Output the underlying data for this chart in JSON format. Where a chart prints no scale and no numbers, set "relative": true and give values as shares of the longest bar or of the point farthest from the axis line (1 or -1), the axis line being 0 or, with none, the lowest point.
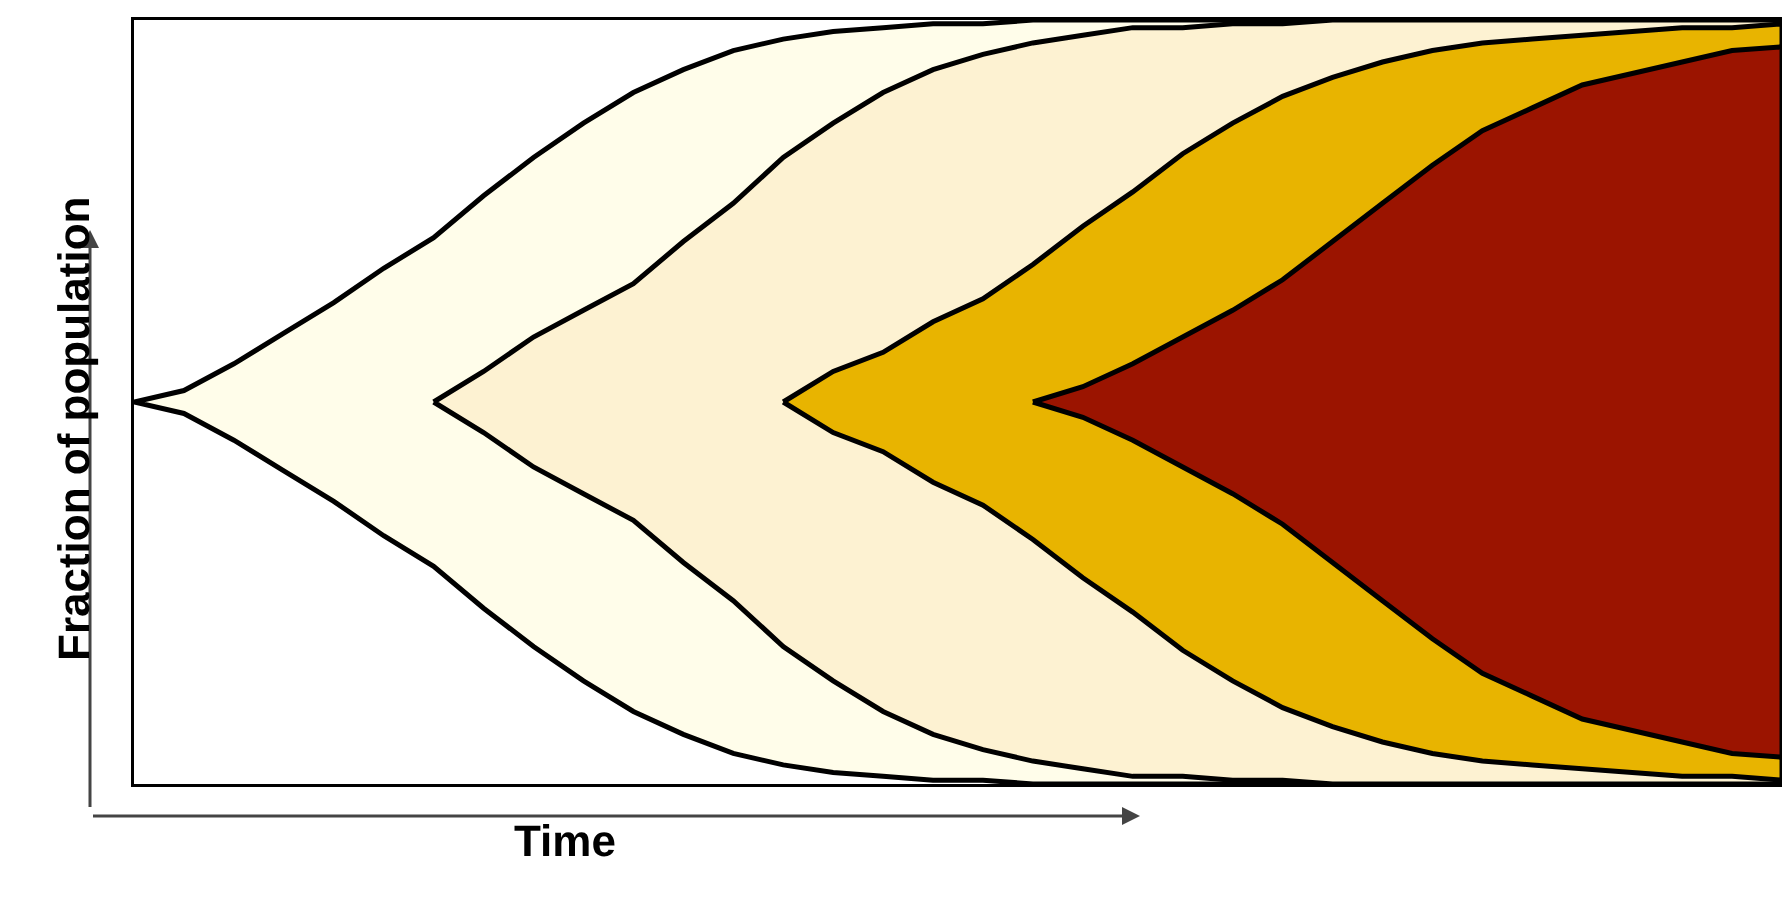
{
  "chart_data": {
    "type": "area",
    "relative": true,
    "ylabel": "Fraction of population",
    "annotations": [
      "Time"
    ],
    "categories": [
      null,
      null,
      null,
      null,
      null,
      null,
      null,
      null,
      null,
      null,
      null,
      null,
      null,
      null,
      null,
      null,
      null,
      null,
      null,
      null,
      null,
      null,
      null,
      null,
      null,
      null,
      null,
      null,
      null,
      null,
      null,
      null,
      null,
      null
    ],
    "series": [
      {
        "color": "#fffdea",
        "values": [
          0.5,
          0.515,
          0.55,
          0.59,
          0.63,
          0.675,
          0.715,
          0.77,
          0.82,
          0.865,
          0.905,
          0.935,
          0.96,
          0.975,
          0.985,
          0.99,
          0.995,
          0.995,
          1,
          1,
          1,
          1,
          1,
          1,
          1,
          1,
          1,
          1,
          1,
          1,
          1,
          1,
          1,
          1
        ]
      },
      {
        "color": "#fdf2d2",
        "values": [
          null,
          null,
          null,
          null,
          null,
          null,
          0.5,
          0.54,
          0.585,
          0.62,
          0.655,
          0.71,
          0.76,
          0.82,
          0.865,
          0.905,
          0.935,
          0.955,
          0.97,
          0.98,
          0.99,
          0.99,
          0.995,
          0.995,
          1,
          1,
          1,
          1,
          1,
          1,
          1,
          1,
          1,
          1
        ]
      },
      {
        "color": "#e8b400",
        "values": [
          null,
          null,
          null,
          null,
          null,
          null,
          null,
          null,
          null,
          null,
          null,
          null,
          null,
          0.5,
          0.54,
          0.565,
          0.605,
          0.635,
          0.68,
          0.73,
          0.775,
          0.825,
          0.865,
          0.9,
          0.925,
          0.945,
          0.96,
          0.97,
          0.975,
          0.98,
          0.985,
          0.99,
          0.99,
          0.995
        ]
      },
      {
        "color": "#9b1400",
        "values": [
          null,
          null,
          null,
          null,
          null,
          null,
          null,
          null,
          null,
          null,
          null,
          null,
          null,
          null,
          null,
          null,
          null,
          null,
          0.5,
          0.52,
          0.55,
          0.585,
          0.62,
          0.66,
          0.71,
          0.76,
          0.81,
          0.855,
          0.885,
          0.915,
          0.93,
          0.945,
          0.96,
          0.965
        ]
      }
    ]
  }
}
